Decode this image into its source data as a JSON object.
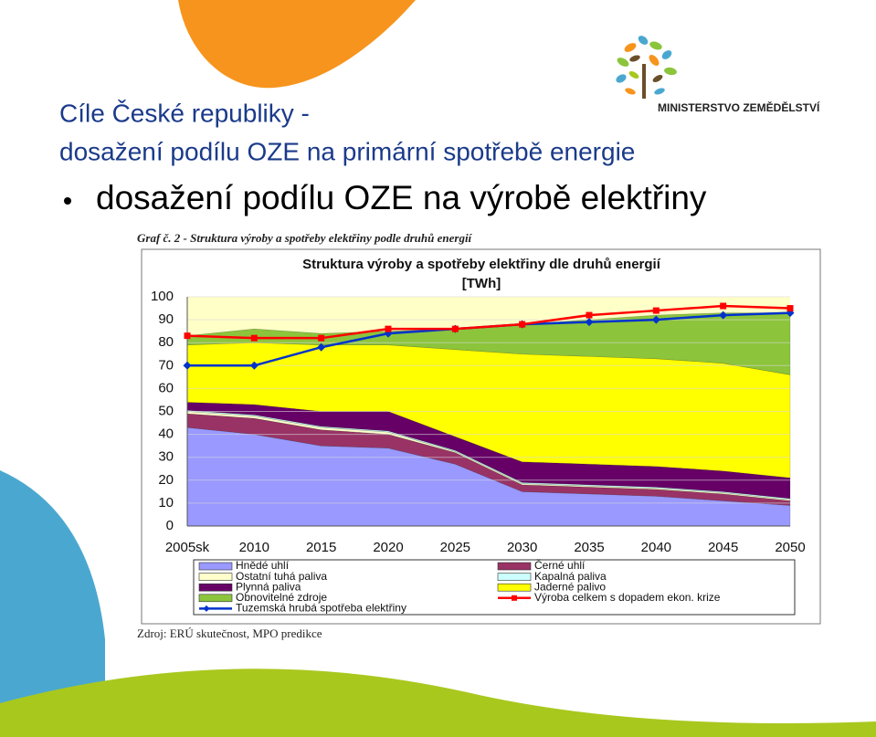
{
  "slide": {
    "title_line1": "Cíle České republiky -",
    "title_line2": "dosažení podílu OZE na primární spotřebě energie",
    "bullet": "dosažení podílu OZE na výrobě elektřiny",
    "logo_text": "MINISTERSTVO ZEMĚDĚLSTVÍ",
    "caption": "Graf č. 2 - Struktura výroby a spotřeby elektřiny podle druhů energií",
    "source": "Zdroj: ERÚ skutečnost, MPO predikce"
  },
  "chart_data": {
    "type": "area",
    "title": "Struktura výroby a spotřeby elektřiny dle druhů energií",
    "subtitle": "[TWh]",
    "categories": [
      "2005sk",
      "2010",
      "2015",
      "2020",
      "2025",
      "2030",
      "2035",
      "2040",
      "2045",
      "2050"
    ],
    "ylim": [
      0,
      100
    ],
    "yticks": [
      0,
      10,
      20,
      30,
      40,
      50,
      60,
      70,
      80,
      90,
      100
    ],
    "grid": true,
    "stacked": true,
    "plot_background": "#ffffc8",
    "series": [
      {
        "name": "Hnědé uhlí",
        "color": "#9999ff",
        "values": [
          43,
          40,
          35,
          34,
          27,
          15,
          14,
          13,
          11,
          9
        ]
      },
      {
        "name": "Černé uhlí",
        "color": "#993366",
        "values": [
          6,
          7,
          7,
          6,
          5,
          3,
          3,
          3,
          3,
          2
        ]
      },
      {
        "name": "Ostatní tuhá paliva",
        "color": "#ffffcc",
        "values": [
          1,
          1,
          1,
          1,
          0.5,
          0.5,
          0.5,
          0.5,
          0.5,
          0.5
        ]
      },
      {
        "name": "Kapalná paliva",
        "color": "#ccffff",
        "values": [
          0.5,
          0.5,
          0.5,
          0.5,
          0.5,
          0.5,
          0.5,
          0.5,
          0.5,
          0.5
        ]
      },
      {
        "name": "Plynná paliva",
        "color": "#660066",
        "values": [
          3.5,
          4.5,
          6.5,
          8.5,
          6,
          9,
          9,
          9,
          9,
          9
        ]
      },
      {
        "name": "Jaderné palivo",
        "color": "#ffff00",
        "values": [
          25,
          27,
          29,
          29,
          38,
          47,
          47,
          47,
          47,
          45
        ]
      },
      {
        "name": "Obnovitelné zdroje",
        "color": "#8cc43c",
        "values": [
          4,
          6,
          5,
          6,
          9,
          13,
          16,
          19,
          22,
          27
        ]
      },
      {
        "name": "Tuzemská hrubá spotřeba elektřiny",
        "color": "#0033cc",
        "type": "line",
        "marker": "diamond",
        "values": [
          70,
          70,
          78,
          84,
          86,
          88,
          89,
          90,
          92,
          93
        ]
      },
      {
        "name": "Výroba celkem s dopadem ekon. krize",
        "color": "#ff0000",
        "type": "line",
        "marker": "square",
        "values": [
          83,
          82,
          82,
          86,
          86,
          88,
          92,
          94,
          96,
          95
        ]
      }
    ]
  }
}
